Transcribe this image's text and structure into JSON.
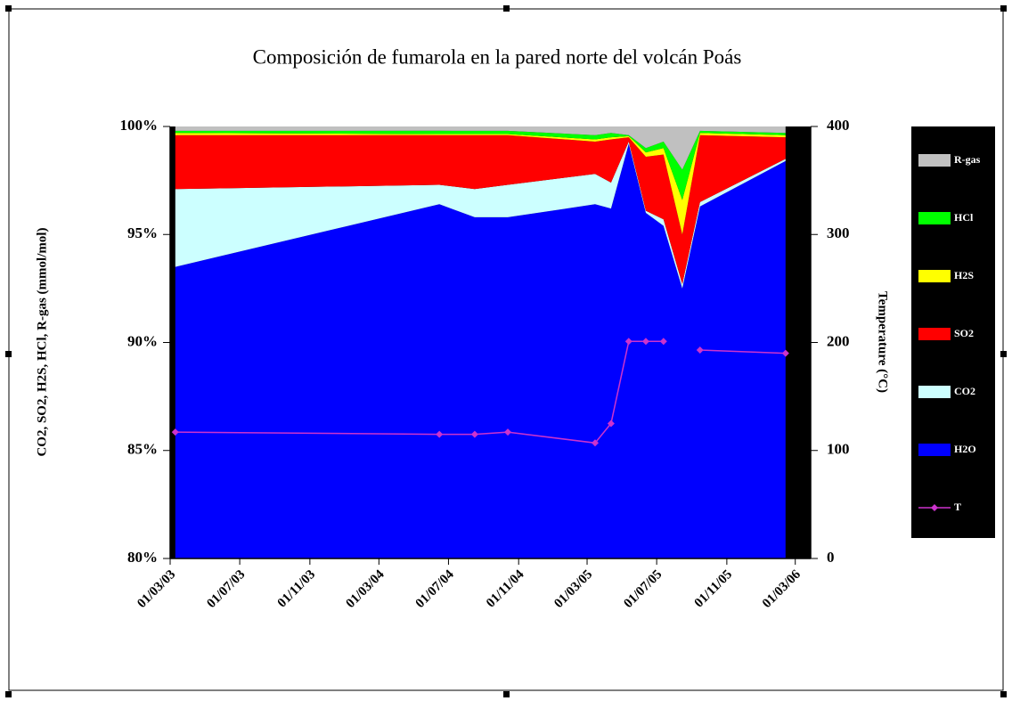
{
  "chart_data": {
    "type": "area",
    "stacked": true,
    "title": "Composición de fumarola en la pared norte del volcán Poás",
    "y_label": "CO2, SO2, H2S, HCl, R-gas (mmol/mol)",
    "y2_label": "Temperature (°C)",
    "x": [
      "10/03/03",
      "15/06/04",
      "16/08/04",
      "13/10/04",
      "15/03/05",
      "12/04/05",
      "13/05/05",
      "12/06/05",
      "13/07/05",
      "15/08/05",
      "15/09/05",
      "12/02/06"
    ],
    "xlim": [
      "01/03/03",
      "28/03/06"
    ],
    "xticks": [
      "01/03/03",
      "01/07/03",
      "01/11/03",
      "01/03/04",
      "01/07/04",
      "01/11/04",
      "01/03/05",
      "01/07/05",
      "01/11/05",
      "01/03/06"
    ],
    "ylim": [
      80,
      100
    ],
    "yticks": [
      {
        "value": 80,
        "label": "80%"
      },
      {
        "value": 85,
        "label": "85%"
      },
      {
        "value": 90,
        "label": "90%"
      },
      {
        "value": 95,
        "label": "95%"
      },
      {
        "value": 100,
        "label": "100%"
      }
    ],
    "y2lim": [
      0,
      400
    ],
    "y2ticks": [
      0,
      100,
      200,
      300,
      400
    ],
    "plot_background": "#000000",
    "legend": "right",
    "series": [
      {
        "name": "H2O",
        "color": "#0000ff",
        "values": [
          93.5,
          96.4,
          95.8,
          95.8,
          96.4,
          96.2,
          99.2,
          96.0,
          95.4,
          92.5,
          96.3,
          98.4
        ]
      },
      {
        "name": "CO2",
        "color": "#ccffff",
        "values": [
          3.6,
          0.9,
          1.3,
          1.5,
          1.4,
          1.2,
          0.1,
          0.1,
          0.3,
          0.2,
          0.2,
          0.1
        ]
      },
      {
        "name": "SO2",
        "color": "#ff0000",
        "values": [
          2.5,
          2.3,
          2.5,
          2.3,
          1.5,
          2.0,
          0.2,
          2.5,
          3.0,
          2.3,
          3.1,
          1.0
        ]
      },
      {
        "name": "H2S",
        "color": "#ffff00",
        "values": [
          0.1,
          0.05,
          0.05,
          0.05,
          0.1,
          0.1,
          0.05,
          0.2,
          0.3,
          1.6,
          0.1,
          0.1
        ]
      },
      {
        "name": "HCl",
        "color": "#00ff00",
        "values": [
          0.1,
          0.15,
          0.15,
          0.15,
          0.2,
          0.2,
          0.05,
          0.2,
          0.3,
          1.4,
          0.1,
          0.1
        ]
      },
      {
        "name": "R-gas",
        "color": "#c0c0c0",
        "values": [
          0.2,
          0.2,
          0.2,
          0.2,
          0.4,
          0.3,
          0.4,
          1.0,
          0.7,
          2.0,
          0.2,
          0.3
        ]
      },
      {
        "name": "T",
        "type": "line",
        "axis": "y2",
        "color": "#cc33cc",
        "values": [
          117,
          115,
          115,
          117,
          107,
          125,
          201,
          201,
          201,
          null,
          193,
          190
        ]
      }
    ]
  }
}
